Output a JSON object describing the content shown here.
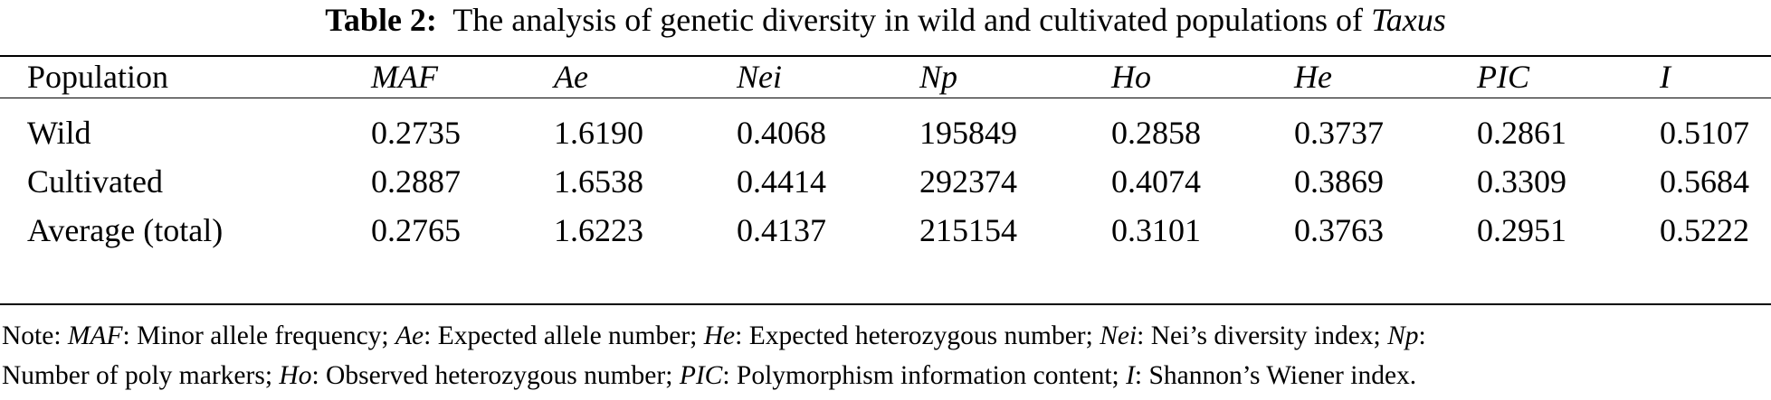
{
  "caption": {
    "label": "Table 2:",
    "text": "The analysis of genetic diversity in wild and cultivated populations of",
    "taxon": "Taxus"
  },
  "table": {
    "headers": [
      "Population",
      "MAF",
      "Ae",
      "Nei",
      "Np",
      "Ho",
      "He",
      "PIC",
      "I"
    ],
    "rows": [
      [
        "Wild",
        "0.2735",
        "1.6190",
        "0.4068",
        "195849",
        "0.2858",
        "0.3737",
        "0.2861",
        "0.5107"
      ],
      [
        "Cultivated",
        "0.2887",
        "1.6538",
        "0.4414",
        "292374",
        "0.4074",
        "0.3869",
        "0.3309",
        "0.5684"
      ],
      [
        "Average (total)",
        "0.2765",
        "1.6223",
        "0.4137",
        "215154",
        "0.3101",
        "0.3763",
        "0.2951",
        "0.5222"
      ]
    ]
  },
  "note": {
    "prefix": "Note: ",
    "line1": [
      {
        "term": "MAF",
        "def": ": Minor allele frequency; "
      },
      {
        "term": "Ae",
        "def": ": Expected allele number; "
      },
      {
        "term": "He",
        "def": ": Expected heterozygous number; "
      },
      {
        "term": "Nei",
        "def": ": Nei’s diversity index; "
      },
      {
        "term": "Np",
        "def": ":"
      }
    ],
    "line2_lead": "Number of poly markers; ",
    "line2": [
      {
        "term": "Ho",
        "def": ": Observed heterozygous number; "
      },
      {
        "term": "PIC",
        "def": ": Polymorphism information content; "
      },
      {
        "term": "I",
        "def": ": Shannon’s Wiener index."
      }
    ]
  }
}
